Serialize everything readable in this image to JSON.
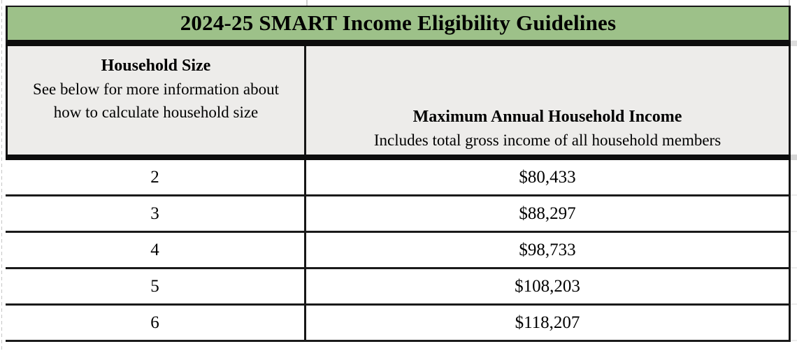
{
  "table": {
    "title": "2024-25 SMART Income Eligibility Guidelines",
    "columns": {
      "household": {
        "label": "Household Size",
        "note": "See below for more information about how to calculate household size"
      },
      "income": {
        "label": "Maximum Annual Household Income",
        "note": "Includes total gross income of all household members"
      }
    },
    "rows": [
      {
        "size": "2",
        "income": "$80,433"
      },
      {
        "size": "3",
        "income": "$88,297"
      },
      {
        "size": "4",
        "income": "$98,733"
      },
      {
        "size": "5",
        "income": "$108,203"
      },
      {
        "size": "6",
        "income": "$118,207"
      }
    ]
  },
  "colors": {
    "header_green": "#9DC189",
    "header_gray": "#EDECEA",
    "border": "#161616"
  }
}
